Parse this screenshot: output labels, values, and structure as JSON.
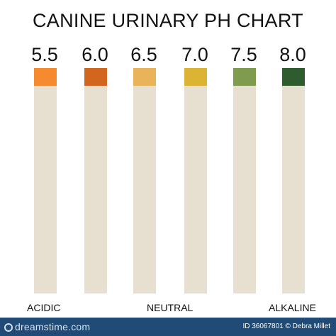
{
  "title": "CANINE URINARY PH CHART",
  "scale": [
    {
      "value": "5.5",
      "color": "#f58a2e"
    },
    {
      "value": "6.0",
      "color": "#d2661f"
    },
    {
      "value": "6.5",
      "color": "#e9b35a"
    },
    {
      "value": "7.0",
      "color": "#dab432"
    },
    {
      "value": "7.5",
      "color": "#7f9b4d"
    },
    {
      "value": "8.0",
      "color": "#2f5c2f"
    }
  ],
  "labels": {
    "acidic": "ACIDIC",
    "neutral": "NEUTRAL",
    "alkaline": "ALKALINE"
  },
  "footer": {
    "brand": "dreamstime.com",
    "credit": "ID 36067801 © Debra Millet"
  },
  "colors": {
    "strip": "#e7dfcf",
    "footer_bg": "#1f4b76"
  }
}
